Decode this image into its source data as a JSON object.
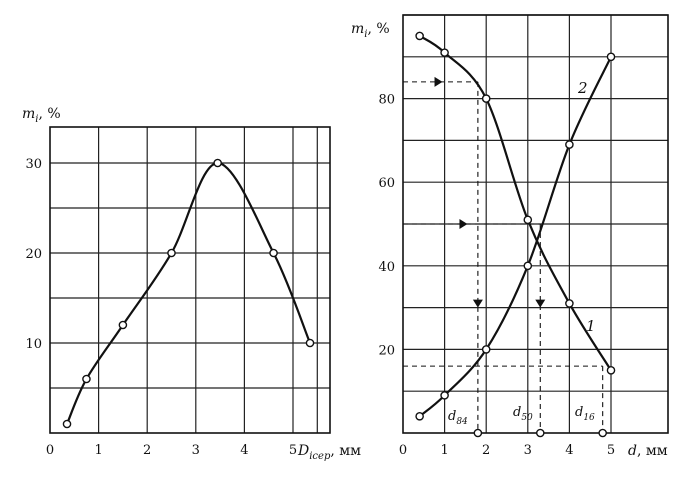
{
  "chart_data": [
    {
      "type": "line",
      "title": "",
      "ylabel": "m_i, %",
      "xlabel": "D_icep, мм",
      "xlim": [
        0,
        5.5
      ],
      "ylim": [
        0,
        34
      ],
      "x_ticks": [
        0,
        1,
        2,
        3,
        4,
        5
      ],
      "y_ticks": [
        10,
        20,
        30
      ],
      "grid": true,
      "series": [
        {
          "x": [
            0.35,
            0.75,
            1.5,
            2.5,
            3.45,
            4.6,
            5.35
          ],
          "y": [
            1,
            6,
            12,
            20,
            30,
            20,
            10
          ]
        }
      ]
    },
    {
      "type": "line",
      "title": "",
      "ylabel": "m_i, %",
      "xlabel": "d, мм",
      "xlim": [
        0,
        5.5
      ],
      "ylim": [
        0,
        100
      ],
      "x_ticks": [
        0,
        1,
        2,
        3,
        4,
        5
      ],
      "y_ticks": [
        20,
        40,
        60,
        80
      ],
      "grid": true,
      "series": [
        {
          "name": "1",
          "x": [
            0.4,
            1.0,
            2.0,
            3.0,
            4.0,
            5.0
          ],
          "y": [
            95,
            91,
            80,
            51,
            31,
            15
          ]
        },
        {
          "name": "2",
          "x": [
            0.4,
            1.0,
            2.0,
            3.0,
            4.0,
            5.0
          ],
          "y": [
            4,
            9,
            20,
            40,
            69,
            90
          ]
        }
      ],
      "annotations": {
        "d84": {
          "label": "d84",
          "x": 1.8,
          "y_level": 84
        },
        "d50": {
          "label": "d50",
          "x": 3.3,
          "y_level": 50
        },
        "d16": {
          "label": "d16",
          "x": 4.8,
          "y_level": 16
        }
      }
    }
  ],
  "labels": {
    "left_ylabel_main": "m",
    "left_ylabel_sub": "i",
    "left_ylabel_unit": ", %",
    "left_xlabel_main": "D",
    "left_xlabel_sub": "icep",
    "left_xlabel_unit": ", мм",
    "right_ylabel_main": "m",
    "right_ylabel_sub": "i",
    "right_ylabel_unit": ", %",
    "right_xlabel_main": "d",
    "right_xlabel_unit": ", мм",
    "curve1": "1",
    "curve2": "2",
    "d84_main": "d",
    "d84_sub": "84",
    "d50_main": "d",
    "d50_sub": "50",
    "d16_main": "d",
    "d16_sub": "16"
  }
}
